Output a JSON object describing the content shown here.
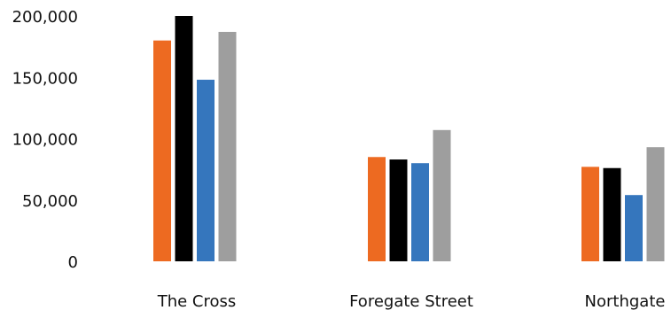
{
  "chart_data": {
    "type": "bar",
    "title": "",
    "xlabel": "",
    "ylabel": "",
    "ylim": [
      0,
      200000
    ],
    "y_ticks": [
      0,
      50000,
      100000,
      150000,
      200000
    ],
    "y_tick_labels": [
      "0",
      "50,000",
      "100,000",
      "150,000",
      "200,000"
    ],
    "grid": false,
    "legend": "none",
    "categories": [
      "The Cross",
      "Foregate Street",
      "Northgate"
    ],
    "series": [
      {
        "color": "#ed6a21",
        "values": [
          180000,
          85000,
          77000
        ]
      },
      {
        "color": "#000000",
        "values": [
          200000,
          83000,
          76000
        ]
      },
      {
        "color": "#3576bd",
        "values": [
          148000,
          80000,
          54000
        ]
      },
      {
        "color": "#9e9e9e",
        "values": [
          187000,
          107000,
          93000
        ]
      }
    ]
  }
}
